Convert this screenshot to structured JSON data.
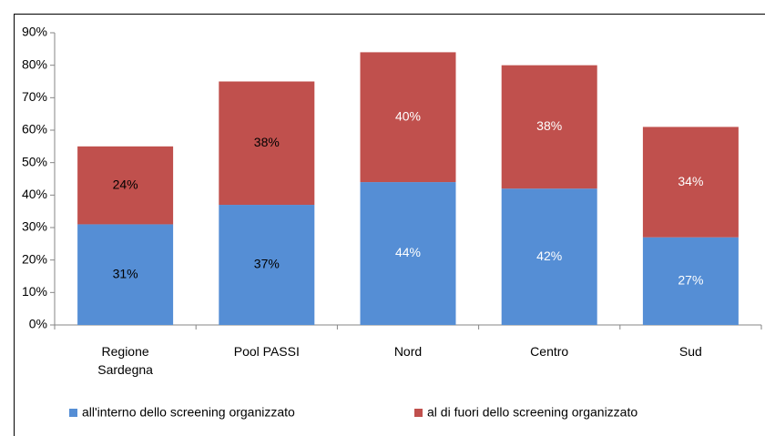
{
  "chart_data": {
    "type": "stacked_bar",
    "categories": [
      "Regione Sardegna",
      "Pool PASSI",
      "Nord",
      "Centro",
      "Sud"
    ],
    "series": [
      {
        "name": "all'interno dello screening organizzato",
        "color": "#558ed5",
        "values": [
          31,
          37,
          44,
          42,
          27
        ],
        "value_labels": [
          "31%",
          "37%",
          "44%",
          "42%",
          "27%"
        ]
      },
      {
        "name": "al di fuori dello screening organizzato",
        "color": "#c0504d",
        "values": [
          24,
          38,
          40,
          38,
          34
        ],
        "value_labels": [
          "24%",
          "38%",
          "40%",
          "38%",
          "34%"
        ]
      }
    ],
    "value_label_colors": [
      "#000000",
      "#000000",
      "#ffffff",
      "#ffffff",
      "#ffffff"
    ],
    "ylim": [
      0,
      90
    ],
    "yticks": [
      {
        "value": 0,
        "label": "0%"
      },
      {
        "value": 10,
        "label": "10%"
      },
      {
        "value": 20,
        "label": "20%"
      },
      {
        "value": 30,
        "label": "30%"
      },
      {
        "value": 40,
        "label": "40%"
      },
      {
        "value": 50,
        "label": "50%"
      },
      {
        "value": 60,
        "label": "60%"
      },
      {
        "value": 70,
        "label": "70%"
      },
      {
        "value": 80,
        "label": "80%"
      },
      {
        "value": 90,
        "label": "90%"
      }
    ],
    "legend": "bottom"
  }
}
